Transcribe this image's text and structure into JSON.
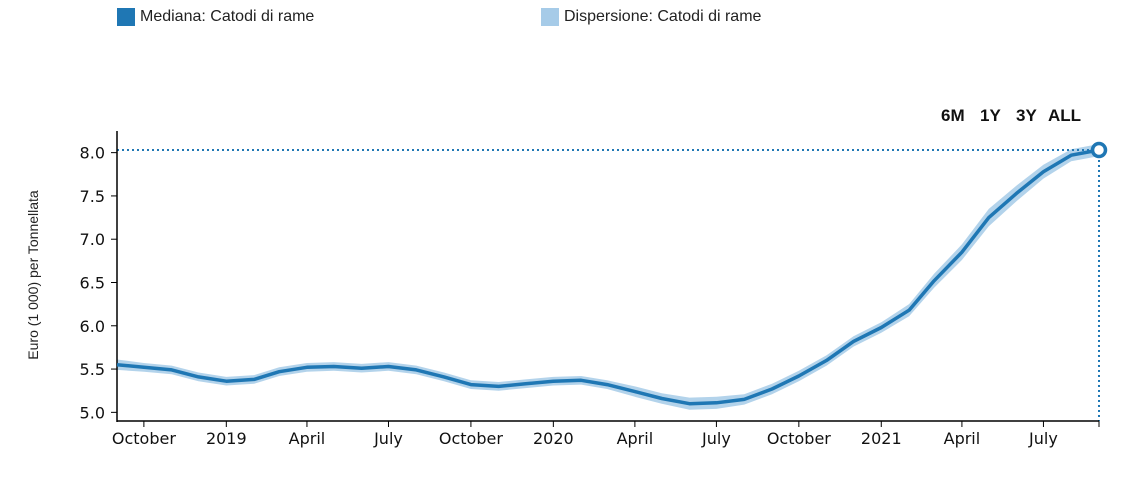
{
  "legend": {
    "median_label": "Mediana: Catodi di rame",
    "median_color": "#1f77b4",
    "dispersion_label": "Dispersione: Catodi di rame",
    "dispersion_color": "#a6cbe8"
  },
  "range_buttons": [
    "6M",
    "1Y",
    "3Y",
    "ALL"
  ],
  "chart_data": {
    "type": "area",
    "ylabel": "Euro (1 000) per Tonnellata",
    "xlabel": "",
    "ylim": [
      4.9,
      8.25
    ],
    "y_ticks": [
      5.0,
      5.5,
      6.0,
      6.5,
      7.0,
      7.5,
      8.0
    ],
    "y_tick_labels": [
      "5.0",
      "5.5",
      "6.0",
      "6.5",
      "7.0",
      "7.5",
      "8.0"
    ],
    "x_range": [
      "2018-09-01",
      "2021-09-01"
    ],
    "x_ticks": [
      {
        "date": "2018-10-01",
        "label": "October"
      },
      {
        "date": "2019-01-01",
        "label": "2019"
      },
      {
        "date": "2019-04-01",
        "label": "April"
      },
      {
        "date": "2019-07-01",
        "label": "July"
      },
      {
        "date": "2019-10-01",
        "label": "October"
      },
      {
        "date": "2020-01-01",
        "label": "2020"
      },
      {
        "date": "2020-04-01",
        "label": "April"
      },
      {
        "date": "2020-07-01",
        "label": "July"
      },
      {
        "date": "2020-10-01",
        "label": "October"
      },
      {
        "date": "2021-01-01",
        "label": "2021"
      },
      {
        "date": "2021-04-01",
        "label": "April"
      },
      {
        "date": "2021-07-01",
        "label": "July"
      }
    ],
    "series": [
      {
        "name": "Mediana: Catodi di rame",
        "points": [
          [
            "2018-09-01",
            5.55
          ],
          [
            "2018-10-01",
            5.52
          ],
          [
            "2018-11-01",
            5.49
          ],
          [
            "2018-12-01",
            5.41
          ],
          [
            "2019-01-01",
            5.36
          ],
          [
            "2019-02-01",
            5.38
          ],
          [
            "2019-03-01",
            5.47
          ],
          [
            "2019-04-01",
            5.52
          ],
          [
            "2019-05-01",
            5.53
          ],
          [
            "2019-06-01",
            5.51
          ],
          [
            "2019-07-01",
            5.53
          ],
          [
            "2019-08-01",
            5.49
          ],
          [
            "2019-09-01",
            5.41
          ],
          [
            "2019-10-01",
            5.32
          ],
          [
            "2019-11-01",
            5.3
          ],
          [
            "2019-12-01",
            5.33
          ],
          [
            "2020-01-01",
            5.36
          ],
          [
            "2020-02-01",
            5.37
          ],
          [
            "2020-03-01",
            5.32
          ],
          [
            "2020-04-01",
            5.24
          ],
          [
            "2020-05-01",
            5.16
          ],
          [
            "2020-06-01",
            5.1
          ],
          [
            "2020-07-01",
            5.11
          ],
          [
            "2020-08-01",
            5.15
          ],
          [
            "2020-09-01",
            5.27
          ],
          [
            "2020-10-01",
            5.42
          ],
          [
            "2020-11-01",
            5.6
          ],
          [
            "2020-12-01",
            5.82
          ],
          [
            "2021-01-01",
            5.98
          ],
          [
            "2021-02-01",
            6.18
          ],
          [
            "2021-03-01",
            6.52
          ],
          [
            "2021-04-01",
            6.85
          ],
          [
            "2021-05-01",
            7.25
          ],
          [
            "2021-06-01",
            7.53
          ],
          [
            "2021-07-01",
            7.78
          ],
          [
            "2021-08-01",
            7.97
          ],
          [
            "2021-09-01",
            8.03
          ]
        ]
      },
      {
        "name": "Dispersione: Catodi di rame",
        "half_width": [
          0.06,
          0.05,
          0.05,
          0.05,
          0.05,
          0.05,
          0.05,
          0.05,
          0.05,
          0.05,
          0.05,
          0.05,
          0.05,
          0.05,
          0.05,
          0.05,
          0.05,
          0.05,
          0.05,
          0.06,
          0.06,
          0.07,
          0.07,
          0.06,
          0.06,
          0.06,
          0.06,
          0.06,
          0.06,
          0.07,
          0.08,
          0.09,
          0.1,
          0.09,
          0.08,
          0.07,
          0.07
        ]
      }
    ],
    "highlight": {
      "date": "2021-09-01",
      "value": 8.03
    },
    "grid": false
  }
}
